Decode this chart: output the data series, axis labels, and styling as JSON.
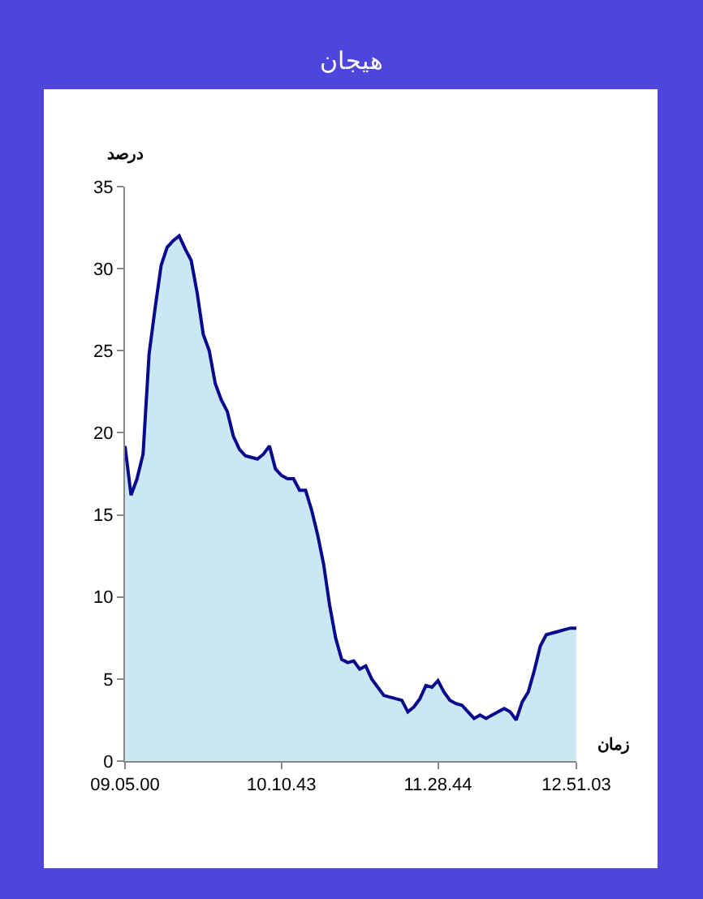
{
  "chart_data": {
    "type": "area",
    "title": "هیجان",
    "xlabel": "زمان",
    "ylabel": "درصد",
    "categories": [
      "09.05.00",
      null,
      null,
      null,
      null,
      null,
      null,
      null,
      null,
      null,
      null,
      null,
      null,
      null,
      null,
      null,
      null,
      null,
      null,
      null,
      null,
      null,
      null,
      null,
      null,
      null,
      "10.10.43",
      null,
      null,
      null,
      null,
      null,
      null,
      null,
      null,
      null,
      null,
      null,
      null,
      null,
      null,
      null,
      null,
      null,
      null,
      null,
      null,
      null,
      null,
      null,
      null,
      null,
      "11.28.44",
      null,
      null,
      null,
      null,
      null,
      null,
      null,
      null,
      null,
      null,
      null,
      null,
      null,
      null,
      null,
      null,
      null,
      null,
      null,
      null,
      null,
      null,
      "12.51.03"
    ],
    "series": [
      {
        "color": "#0a0a8c",
        "values": [
          19.2,
          16.2,
          17.2,
          18.7,
          24.8,
          27.6,
          30.2,
          31.3,
          31.7,
          32,
          31.2,
          30.5,
          28.5,
          26,
          25,
          23,
          22,
          21.3,
          19.8,
          19,
          18.6,
          18.5,
          18.4,
          18.7,
          19.2,
          17.8,
          17.4,
          17.2,
          17.2,
          16.5,
          16.5,
          15.3,
          13.8,
          12,
          9.5,
          7.5,
          6.2,
          6.0,
          6.1,
          5.6,
          5.8,
          5.0,
          4.5,
          4.0,
          3.9,
          3.8,
          3.7,
          3.0,
          3.3,
          3.8,
          4.6,
          4.5,
          4.9,
          4.2,
          3.7,
          3.5,
          3.4,
          3.0,
          2.6,
          2.8,
          2.6,
          2.8,
          3.0,
          3.2,
          3.0,
          2.5,
          3.6,
          4.2,
          5.5,
          7.0,
          7.7,
          7.8,
          7.9,
          8.0,
          8.1,
          8.1
        ]
      }
    ],
    "ylim": [
      0,
      35
    ],
    "yticks": [
      0,
      5,
      10,
      15,
      20,
      25,
      30,
      35
    ]
  }
}
